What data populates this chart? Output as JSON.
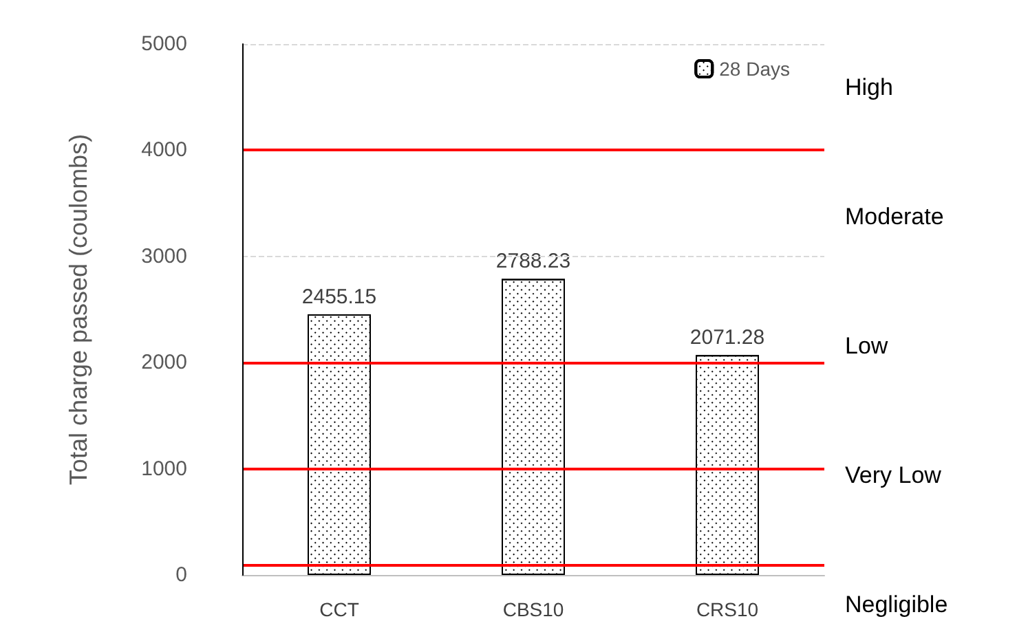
{
  "chart_data": {
    "type": "bar",
    "ylabel": "Total charge passed (coulombs)",
    "categories": [
      "CCT",
      "CBS10",
      "CRS10"
    ],
    "series": [
      {
        "name": "28 Days",
        "color": "#000000",
        "values": [
          2455.15,
          2788.23,
          2071.28
        ]
      }
    ],
    "data_labels": true,
    "ylim": [
      0,
      5000
    ],
    "yticks": [
      0,
      1000,
      2000,
      3000,
      4000,
      5000
    ],
    "legend": "top right",
    "ref_lines": [
      {
        "axis": "y",
        "value": 3000,
        "color": "#d9d9d9",
        "line_style": "dashed"
      },
      {
        "axis": "y",
        "value": 5000,
        "color": "#d9d9d9",
        "line_style": "dashed"
      },
      {
        "axis": "y",
        "value": 100,
        "color": "#ff0000"
      },
      {
        "axis": "y",
        "value": 1000,
        "color": "#ff0000"
      },
      {
        "axis": "y",
        "value": 2000,
        "color": "#ff0000"
      },
      {
        "axis": "y",
        "value": 4000,
        "color": "#ff0000"
      }
    ],
    "annotations": [
      "High",
      "Moderate",
      "Low",
      "Very Low",
      "Negligible"
    ]
  }
}
